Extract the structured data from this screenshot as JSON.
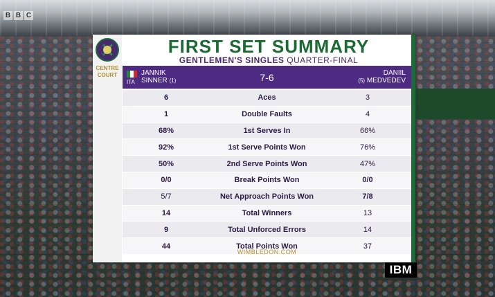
{
  "broadcaster": {
    "logo_letters": [
      "B",
      "B",
      "C"
    ]
  },
  "sponsor": {
    "logo_text": "IBM"
  },
  "panel": {
    "title": "FIRST SET SUMMARY",
    "subtitle_bold": "GENTLEMEN'S SINGLES",
    "subtitle_rest": " QUARTER-FINAL",
    "court_label_1": "CENTRE",
    "court_label_2": "COURT",
    "footer": "WIMBLEDON.COM"
  },
  "match": {
    "score": "7-6",
    "player1": {
      "nationality": "ITA",
      "first_name": "JANNIK",
      "last_name": "SINNER",
      "seed": "(1)",
      "flag_colors": [
        "#1e8a3e",
        "#ffffff",
        "#d22b2b"
      ]
    },
    "player2": {
      "first_name": "DANIIL",
      "last_name": "MEDVEDEV",
      "seed": "(5)"
    }
  },
  "stats": [
    {
      "label": "Aces",
      "p1": "6",
      "p2": "3",
      "leader": "p1"
    },
    {
      "label": "Double Faults",
      "p1": "1",
      "p2": "4",
      "leader": "p1"
    },
    {
      "label": "1st Serves In",
      "p1": "68%",
      "p2": "66%",
      "leader": "p1"
    },
    {
      "label": "1st Serve Points Won",
      "p1": "92%",
      "p2": "76%",
      "leader": "p1"
    },
    {
      "label": "2nd Serve Points Won",
      "p1": "50%",
      "p2": "47%",
      "leader": "p1"
    },
    {
      "label": "Break Points Won",
      "p1": "0/0",
      "p2": "0/0",
      "leader": "both"
    },
    {
      "label": "Net Approach Points Won",
      "p1": "5/7",
      "p2": "7/8",
      "leader": "p2"
    },
    {
      "label": "Total Winners",
      "p1": "14",
      "p2": "13",
      "leader": "p1"
    },
    {
      "label": "Total Unforced Errors",
      "p1": "9",
      "p2": "14",
      "leader": "p1"
    },
    {
      "label": "Total Points Won",
      "p1": "44",
      "p2": "37",
      "leader": "p1"
    }
  ],
  "colors": {
    "accent_green": "#1b6a33",
    "accent_purple": "#4d2b82",
    "gold": "#b0922c"
  }
}
